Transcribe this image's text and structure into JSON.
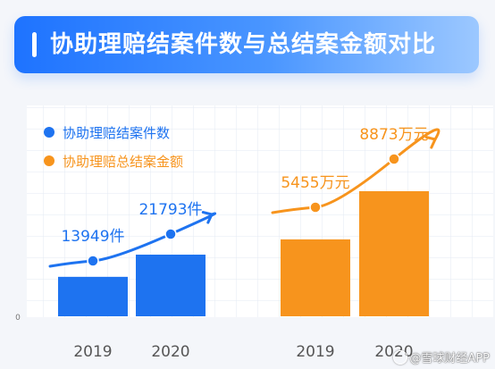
{
  "header": {
    "title": "协助理赔结案件数与总结案金额对比"
  },
  "watermark": {
    "text": "@雪球财经APP"
  },
  "chart_data": [
    {
      "type": "bar",
      "categories": [
        "2019",
        "2020"
      ],
      "series": [
        {
          "name": "协助理赔结案件数",
          "values": [
            13949,
            21793
          ],
          "color": "#1e73f0"
        }
      ],
      "data_labels": [
        "13949件",
        "21793件"
      ],
      "unit": "件",
      "y_zero_label": "0",
      "trend_arrow": true,
      "legend": "top-left",
      "grid": true
    },
    {
      "type": "bar",
      "categories": [
        "2019",
        "2020"
      ],
      "series": [
        {
          "name": "协助理赔总结案金额",
          "values": [
            5455,
            8873
          ],
          "color": "#f7941d"
        }
      ],
      "data_labels": [
        "5455万元",
        "8873万元"
      ],
      "unit": "万元",
      "trend_arrow": true,
      "legend": "top-left",
      "grid": true
    }
  ]
}
